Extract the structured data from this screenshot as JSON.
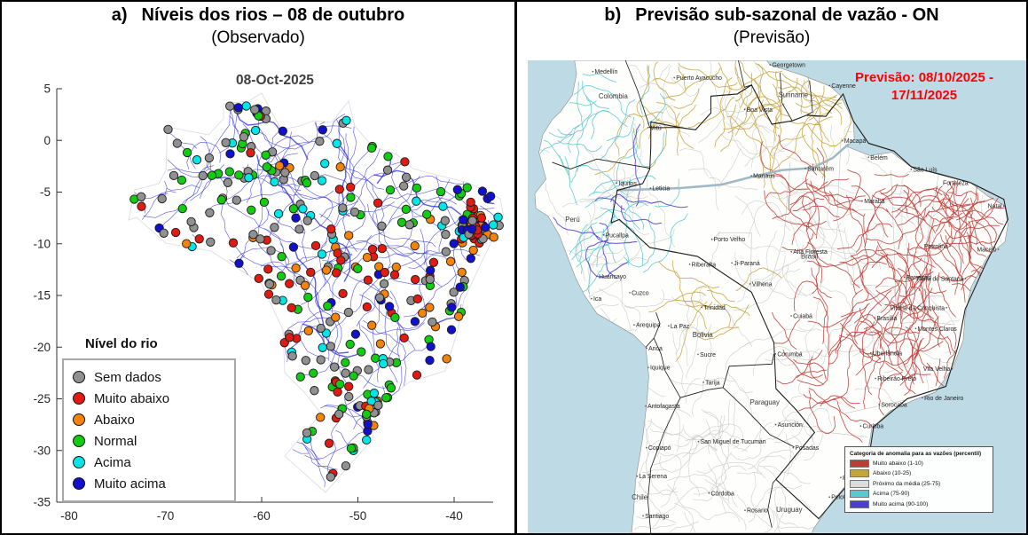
{
  "panel_a": {
    "label": "a)",
    "title": "Níveis dos rios – 08 de outubro",
    "subtitle": "(Observado)",
    "plot_title": "08-Oct-2025",
    "x_tick_labels": [
      "-80",
      "-70",
      "-60",
      "-50",
      "-40"
    ],
    "y_tick_labels": [
      "5",
      "0",
      "-5",
      "-10",
      "-15",
      "-20",
      "-25",
      "-30",
      "-35"
    ],
    "legend_title": "Nível do rio",
    "legend_items": [
      {
        "label": "Sem dados",
        "color": "#909090"
      },
      {
        "label": "Muito abaixo",
        "color": "#e01b12"
      },
      {
        "label": "Abaixo",
        "color": "#f5820b"
      },
      {
        "label": "Normal",
        "color": "#12cb12"
      },
      {
        "label": "Acima",
        "color": "#00e5e5"
      },
      {
        "label": "Muito acima",
        "color": "#1111cc"
      }
    ],
    "river_color": "#2929d6"
  },
  "panel_b": {
    "label": "b)",
    "title": "Previsão sub-sazonal de vazão - ON",
    "subtitle": "(Previsão)",
    "forecast_line1": "Previsão: 08/10/2025 -",
    "forecast_line2": "17/11/2025",
    "forecast_color": "#ff0000",
    "ocean_color": "#bedae4",
    "land_color": "#fefefc",
    "river_normal_color": "#c8c8c8",
    "legend_title": "Categoria de anomalia para as vazões (percentil)",
    "legend_items": [
      {
        "label": "Muito abaixo (1-10)",
        "color": "#bf3b35"
      },
      {
        "label": "Abaixo (10-25)",
        "color": "#c7a33f"
      },
      {
        "label": "Próximo da média (25-75)",
        "color": "#dcdcdc"
      },
      {
        "label": "Acima (75-90)",
        "color": "#59c9cf"
      },
      {
        "label": "Muito acima (90-100)",
        "color": "#4b3fd1"
      }
    ],
    "places": [
      {
        "name": "Medellín",
        "lon": -75.6,
        "lat": 6.2,
        "type": "city"
      },
      {
        "name": "Puerto Ayacucho",
        "lon": -67.6,
        "lat": 5.66,
        "type": "city"
      },
      {
        "name": "Georgetown",
        "lon": -58.16,
        "lat": 6.8,
        "type": "city"
      },
      {
        "name": "Cayenne",
        "lon": -52.33,
        "lat": 4.94,
        "type": "city"
      },
      {
        "name": "Colombia",
        "lon": -73.6,
        "lat": 4.0,
        "type": "country"
      },
      {
        "name": "Suriname",
        "lon": -55.9,
        "lat": 4.1,
        "type": "country"
      },
      {
        "name": "Boa Vista",
        "lon": -60.67,
        "lat": 2.82,
        "type": "city"
      },
      {
        "name": "Mitú",
        "lon": -70.17,
        "lat": 1.2,
        "type": "city"
      },
      {
        "name": "Macapá",
        "lon": -51.07,
        "lat": 0.03,
        "type": "city"
      },
      {
        "name": "Belém",
        "lon": -48.5,
        "lat": -1.45,
        "type": "city"
      },
      {
        "name": "Santarém",
        "lon": -54.7,
        "lat": -2.45,
        "type": "city"
      },
      {
        "name": "Manaus",
        "lon": -60.02,
        "lat": -3.1,
        "type": "city"
      },
      {
        "name": "São Luís",
        "lon": -44.3,
        "lat": -2.53,
        "type": "city"
      },
      {
        "name": "Fortaleza",
        "lon": -38.52,
        "lat": -3.72,
        "type": "city"
      },
      {
        "name": "Iquitos",
        "lon": -73.25,
        "lat": -3.75,
        "type": "city"
      },
      {
        "name": "Leticia",
        "lon": -69.94,
        "lat": -4.2,
        "type": "city"
      },
      {
        "name": "Marabá",
        "lon": -49.12,
        "lat": -5.35,
        "type": "city"
      },
      {
        "name": "Natal",
        "lon": -35.2,
        "lat": -5.8,
        "type": "city"
      },
      {
        "name": "Perú",
        "lon": -77.6,
        "lat": -7.0,
        "type": "country"
      },
      {
        "name": "Pucallpa",
        "lon": -74.55,
        "lat": -8.39,
        "type": "city"
      },
      {
        "name": "Porto Velho",
        "lon": -63.9,
        "lat": -8.76,
        "type": "city"
      },
      {
        "name": "Petrolina",
        "lon": -40.5,
        "lat": -9.39,
        "type": "city"
      },
      {
        "name": "Maceió",
        "lon": -35.74,
        "lat": -9.66,
        "type": "city"
      },
      {
        "name": "Alta Floresta",
        "lon": -56.09,
        "lat": -9.87,
        "type": "city"
      },
      {
        "name": "Brasil",
        "lon": -54.3,
        "lat": -10.3,
        "type": "country"
      },
      {
        "name": "Riberalta",
        "lon": -66.08,
        "lat": -11.0,
        "type": "city"
      },
      {
        "name": "Ji-Paraná",
        "lon": -61.93,
        "lat": -10.88,
        "type": "city"
      },
      {
        "name": "Barreiras",
        "lon": -44.99,
        "lat": -12.15,
        "type": "city"
      },
      {
        "name": "Huancayo",
        "lon": -75.2,
        "lat": -12.07,
        "type": "city"
      },
      {
        "name": "Feira de Santana",
        "lon": -38.97,
        "lat": -12.27,
        "type": "city"
      },
      {
        "name": "Vilhena",
        "lon": -60.14,
        "lat": -12.74,
        "type": "city"
      },
      {
        "name": "Cuzco",
        "lon": -71.97,
        "lat": -13.53,
        "type": "city"
      },
      {
        "name": "Ica",
        "lon": -75.73,
        "lat": -14.07,
        "type": "city"
      },
      {
        "name": "Trinidad",
        "lon": -64.9,
        "lat": -14.83,
        "type": "city"
      },
      {
        "name": "Vitória da Conquista",
        "lon": -40.84,
        "lat": -14.87,
        "type": "city"
      },
      {
        "name": "Cuiabá",
        "lon": -56.1,
        "lat": -15.6,
        "type": "city"
      },
      {
        "name": "Brasília",
        "lon": -47.88,
        "lat": -15.78,
        "type": "city"
      },
      {
        "name": "Arequipa",
        "lon": -71.54,
        "lat": -16.4,
        "type": "city"
      },
      {
        "name": "La Paz",
        "lon": -68.15,
        "lat": -16.5,
        "type": "city"
      },
      {
        "name": "Montes Claros",
        "lon": -43.86,
        "lat": -16.73,
        "type": "city"
      },
      {
        "name": "Bolivia",
        "lon": -64.8,
        "lat": -17.3,
        "type": "country"
      },
      {
        "name": "Arica",
        "lon": -70.31,
        "lat": -18.48,
        "type": "city"
      },
      {
        "name": "Corumbá",
        "lon": -57.65,
        "lat": -19.0,
        "type": "city"
      },
      {
        "name": "Sucre",
        "lon": -65.26,
        "lat": -19.04,
        "type": "city"
      },
      {
        "name": "Uberlândia",
        "lon": -48.28,
        "lat": -18.92,
        "type": "city"
      },
      {
        "name": "Iquique",
        "lon": -70.15,
        "lat": -20.21,
        "type": "city"
      },
      {
        "name": "Vila Velha",
        "lon": -40.29,
        "lat": -20.33,
        "type": "city"
      },
      {
        "name": "Ribeirão Preto",
        "lon": -47.81,
        "lat": -21.18,
        "type": "city"
      },
      {
        "name": "Tarija",
        "lon": -64.73,
        "lat": -21.53,
        "type": "city"
      },
      {
        "name": "Rio de Janeiro",
        "lon": -43.2,
        "lat": -22.91,
        "type": "city"
      },
      {
        "name": "Sorocaba",
        "lon": -47.45,
        "lat": -23.5,
        "type": "city"
      },
      {
        "name": "Antofagasta",
        "lon": -70.4,
        "lat": -23.65,
        "type": "city"
      },
      {
        "name": "Paraguay",
        "lon": -58.7,
        "lat": -23.3,
        "type": "country"
      },
      {
        "name": "Asunción",
        "lon": -57.63,
        "lat": -25.3,
        "type": "city"
      },
      {
        "name": "Curitiba",
        "lon": -49.27,
        "lat": -25.43,
        "type": "city"
      },
      {
        "name": "San Miguel de Tucumán",
        "lon": -65.22,
        "lat": -26.82,
        "type": "city"
      },
      {
        "name": "Posadas",
        "lon": -55.9,
        "lat": -27.37,
        "type": "city"
      },
      {
        "name": "Copiapó",
        "lon": -70.33,
        "lat": -27.37,
        "type": "city"
      },
      {
        "name": "Florianópolis",
        "lon": -48.55,
        "lat": -27.6,
        "type": "city"
      },
      {
        "name": "La Serena",
        "lon": -71.25,
        "lat": -29.9,
        "type": "city"
      },
      {
        "name": "Porto Alegre",
        "lon": -51.23,
        "lat": -30.03,
        "type": "city"
      },
      {
        "name": "Chile",
        "lon": -71.0,
        "lat": -31.8,
        "type": "country"
      },
      {
        "name": "Córdoba",
        "lon": -64.18,
        "lat": -31.42,
        "type": "city"
      },
      {
        "name": "Pelotas",
        "lon": -52.34,
        "lat": -31.77,
        "type": "city"
      },
      {
        "name": "Rosario",
        "lon": -60.64,
        "lat": -32.95,
        "type": "city"
      },
      {
        "name": "Uruguay",
        "lon": -56.3,
        "lat": -32.9,
        "type": "country"
      },
      {
        "name": "Santiago",
        "lon": -70.66,
        "lat": -33.45,
        "type": "city"
      }
    ]
  }
}
